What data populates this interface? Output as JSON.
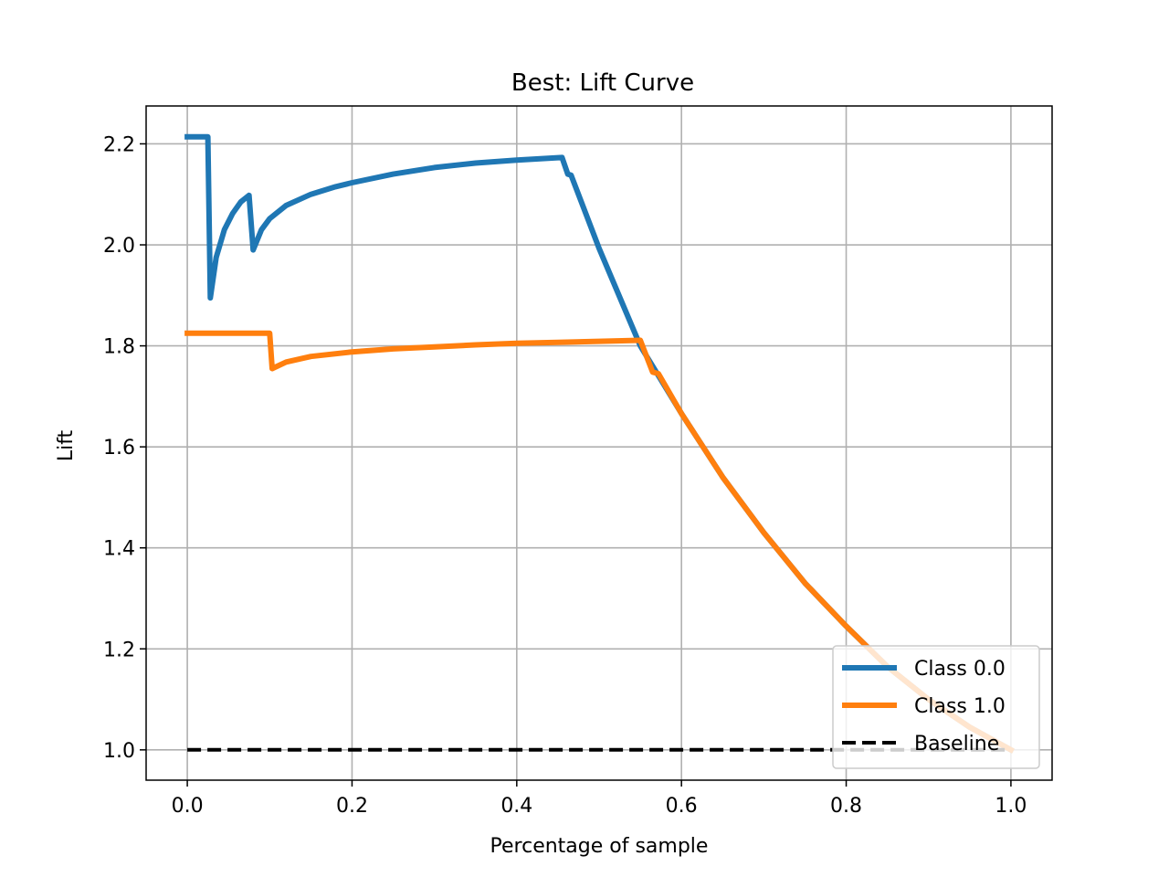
{
  "chart_data": {
    "type": "line",
    "title": "Best: Lift Curve",
    "xlabel": "Percentage of sample",
    "ylabel": "Lift",
    "xlim": [
      -0.05,
      1.05
    ],
    "ylim": [
      0.94,
      2.275
    ],
    "xticks": [
      0.0,
      0.2,
      0.4,
      0.6,
      0.8,
      1.0
    ],
    "xtick_labels": [
      "0.0",
      "0.2",
      "0.4",
      "0.6",
      "0.8",
      "1.0"
    ],
    "yticks": [
      1.0,
      1.2,
      1.4,
      1.6,
      1.8,
      2.0,
      2.2
    ],
    "ytick_labels": [
      "1.0",
      "1.2",
      "1.4",
      "1.6",
      "1.8",
      "2.0",
      "2.2"
    ],
    "grid": true,
    "legend_position": "lower-right",
    "series": [
      {
        "name": "Class 0.0",
        "color": "#1f77b4",
        "dash": "solid",
        "x": [
          0.0,
          0.025,
          0.028,
          0.035,
          0.045,
          0.055,
          0.065,
          0.075,
          0.08,
          0.09,
          0.1,
          0.12,
          0.15,
          0.18,
          0.2,
          0.25,
          0.3,
          0.35,
          0.4,
          0.455,
          0.462,
          0.466,
          0.5,
          0.55,
          0.6,
          0.65,
          0.7,
          0.75,
          0.8,
          0.85,
          0.9,
          0.95,
          1.0
        ],
        "y": [
          2.214,
          2.214,
          1.895,
          1.975,
          2.03,
          2.062,
          2.085,
          2.098,
          1.99,
          2.03,
          2.052,
          2.078,
          2.1,
          2.115,
          2.123,
          2.14,
          2.153,
          2.162,
          2.168,
          2.173,
          2.14,
          2.138,
          1.993,
          1.8,
          1.666,
          1.54,
          1.43,
          1.33,
          1.245,
          1.165,
          1.1,
          1.045,
          1.0
        ]
      },
      {
        "name": "Class 1.0",
        "color": "#ff7f0e",
        "dash": "solid",
        "x": [
          0.0,
          0.1,
          0.103,
          0.12,
          0.15,
          0.2,
          0.25,
          0.3,
          0.35,
          0.4,
          0.45,
          0.5,
          0.55,
          0.565,
          0.572,
          0.6,
          0.65,
          0.7,
          0.75,
          0.8,
          0.85,
          0.9,
          0.95,
          1.0
        ],
        "y": [
          1.825,
          1.825,
          1.755,
          1.768,
          1.779,
          1.788,
          1.794,
          1.798,
          1.802,
          1.805,
          1.807,
          1.809,
          1.811,
          1.748,
          1.745,
          1.666,
          1.54,
          1.43,
          1.33,
          1.245,
          1.165,
          1.1,
          1.045,
          1.0
        ]
      },
      {
        "name": "Baseline",
        "color": "#000000",
        "dash": "dashed",
        "x": [
          0.0,
          1.0
        ],
        "y": [
          1.0,
          1.0
        ]
      }
    ]
  }
}
